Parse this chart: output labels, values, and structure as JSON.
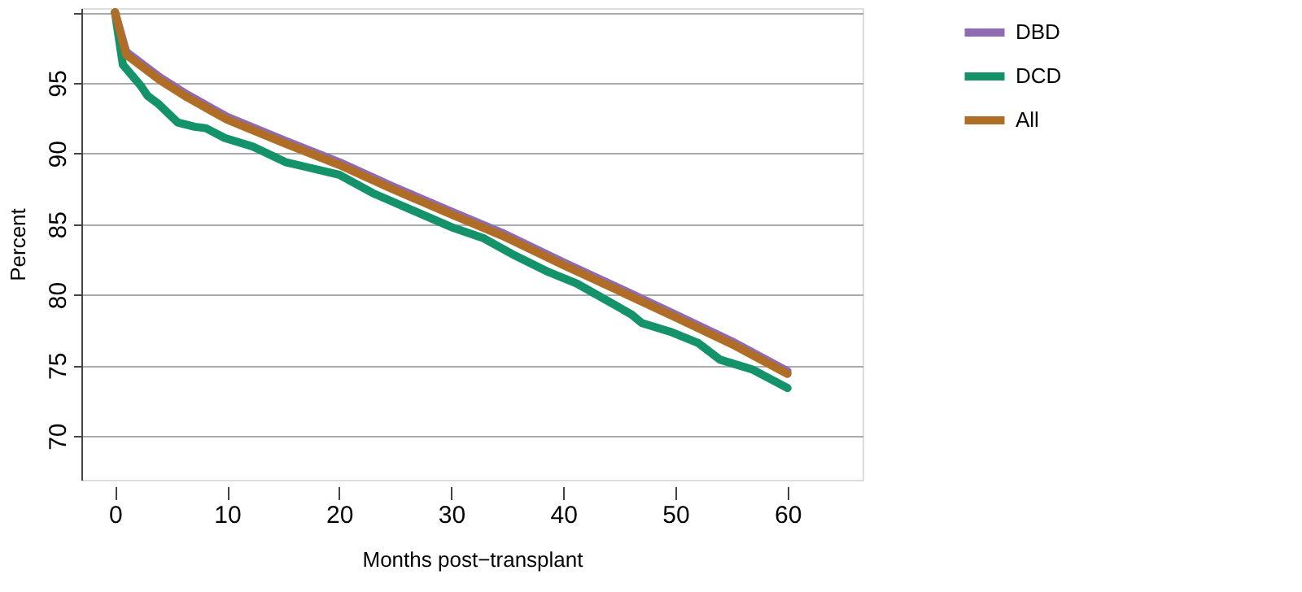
{
  "chart_data": {
    "type": "line",
    "xlabel": "Months post−transplant",
    "ylabel": "Percent",
    "xlim": [
      -3,
      66.7
    ],
    "ylim": [
      66.9,
      100.3
    ],
    "xticks": [
      0,
      10,
      20,
      30,
      40,
      50,
      60
    ],
    "yticks": [
      70,
      75,
      80,
      85,
      90,
      95,
      {
        "value": 100,
        "label": null
      }
    ],
    "grid": "y",
    "legend": "right",
    "line_style": "solid",
    "marker": "none",
    "series": [
      {
        "name": "DBD",
        "color": "#8e6bb2",
        "x": [
          0,
          1,
          4,
          6.4,
          10,
          15.2,
          20,
          24.7,
          30,
          34.5,
          40,
          44.9,
          50,
          55.3,
          60
        ],
        "values": [
          100,
          97.2,
          95.4,
          94.2,
          92.6,
          90.9,
          89.4,
          87.7,
          85.9,
          84.4,
          82.3,
          80.5,
          78.6,
          76.6,
          74.6
        ]
      },
      {
        "name": "DCD",
        "color": "#14936a",
        "x": [
          0,
          0.7,
          2.3,
          2.9,
          3.9,
          5.6,
          7.1,
          8.1,
          9.8,
          12.3,
          15.2,
          16.8,
          20,
          23,
          26.8,
          30,
          32.9,
          35.4,
          38.7,
          41.2,
          44.1,
          46.1,
          47,
          49.5,
          52,
          54,
          56.9,
          60
        ],
        "values": [
          100,
          96.3,
          94.8,
          94.1,
          93.5,
          92.2,
          91.9,
          91.8,
          91.1,
          90.5,
          89.4,
          89.1,
          88.5,
          87.2,
          85.9,
          84.8,
          84,
          82.9,
          81.6,
          80.8,
          79.5,
          78.6,
          78,
          77.4,
          76.6,
          75.4,
          74.7,
          73.4
        ]
      },
      {
        "name": "All",
        "color": "#b06d25",
        "x": [
          0,
          1,
          4,
          6.4,
          10,
          15.2,
          20,
          24.7,
          30,
          34.5,
          40,
          44.9,
          50,
          55.3,
          60
        ],
        "values": [
          100,
          97,
          95.2,
          94,
          92.4,
          90.7,
          89.2,
          87.5,
          85.7,
          84.2,
          82.1,
          80.3,
          78.4,
          76.4,
          74.4
        ]
      }
    ]
  }
}
